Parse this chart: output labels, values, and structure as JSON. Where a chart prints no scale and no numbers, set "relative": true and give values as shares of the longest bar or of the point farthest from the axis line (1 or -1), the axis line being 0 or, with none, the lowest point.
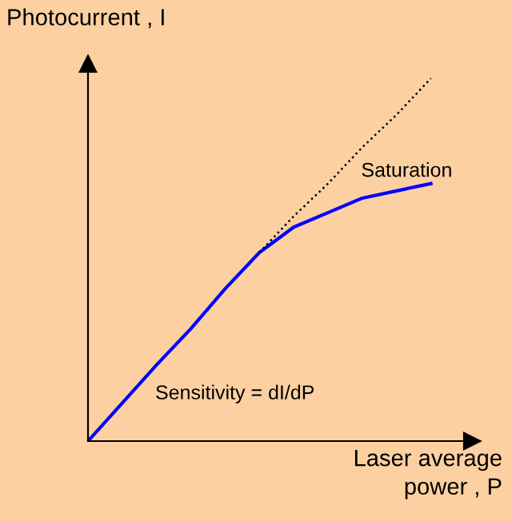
{
  "chart_data": {
    "type": "line",
    "relative": true,
    "xlabel": "Laser average\npower , P",
    "ylabel": "Photocurrent , I",
    "annotations": [
      "Saturation",
      "Sensitivity = dI/dP"
    ],
    "categories": [
      null,
      null,
      null,
      null,
      null,
      null,
      null,
      null,
      null,
      null,
      null
    ],
    "legend": false,
    "series": [
      {
        "color": "#0000ff",
        "line_style": "solid",
        "values": [
          0,
          0.105,
          0.21,
          0.31,
          0.42,
          0.52,
          0.59,
          0.63,
          0.67,
          0.69,
          0.71
        ]
      },
      {
        "color": "#000000",
        "line_style": "dotted",
        "values": [
          null,
          null,
          null,
          null,
          null,
          0.52,
          0.62,
          0.71,
          0.81,
          0.9,
          1.0
        ]
      }
    ]
  }
}
